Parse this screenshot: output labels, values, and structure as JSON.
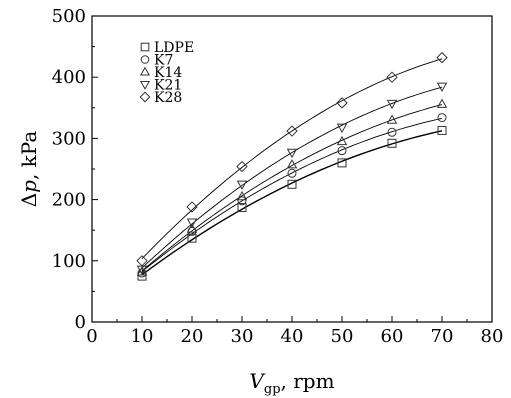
{
  "chart_data": {
    "type": "scatter",
    "x": [
      10,
      20,
      30,
      40,
      50,
      60,
      70
    ],
    "series": [
      {
        "name": "LDPE",
        "marker": "square",
        "values": [
          75,
          137,
          187,
          225,
          260,
          292,
          313
        ]
      },
      {
        "name": "K7",
        "marker": "circle",
        "values": [
          80,
          148,
          198,
          243,
          280,
          310,
          334
        ]
      },
      {
        "name": "K14",
        "marker": "triangle-up",
        "values": [
          82,
          152,
          205,
          257,
          295,
          330,
          356
        ]
      },
      {
        "name": "K21",
        "marker": "triangle-down",
        "values": [
          86,
          163,
          225,
          277,
          318,
          357,
          385
        ]
      },
      {
        "name": "K28",
        "marker": "diamond",
        "values": [
          100,
          188,
          254,
          312,
          358,
          400,
          432
        ]
      }
    ],
    "xlim": [
      0,
      80
    ],
    "ylim": [
      0,
      500
    ],
    "xticks": [
      "0",
      "10",
      "20",
      "30",
      "40",
      "50",
      "60",
      "70",
      "80"
    ],
    "yticks": [
      "0",
      "100",
      "200",
      "300",
      "400",
      "500"
    ],
    "ylabel_main": "Δ",
    "ylabel_italic": "p",
    "ylabel_unit": ", kPa",
    "xlabel_main": "V",
    "xlabel_sub": "gp",
    "xlabel_unit": ", rpm",
    "legend_position": "top-left",
    "fit_lines": "smooth curve per series",
    "colors": {
      "marker": "#333333",
      "line": "#000000"
    }
  }
}
